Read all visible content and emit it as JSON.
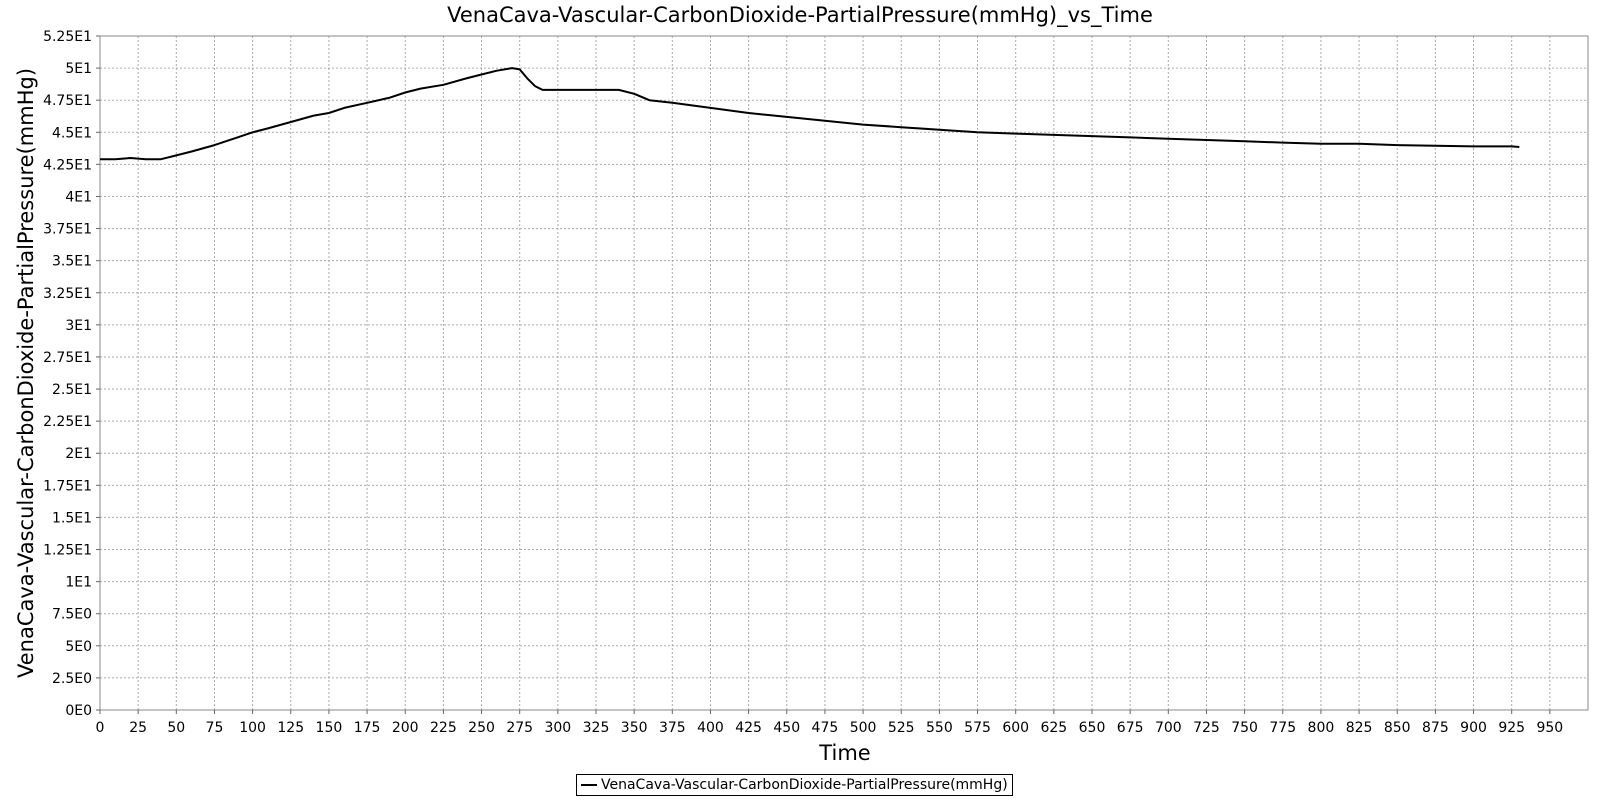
{
  "chart_data": {
    "type": "line",
    "title": "VenaCava-Vascular-CarbonDioxide-PartialPressure(mmHg)_vs_Time",
    "xlabel": "Time",
    "ylabel": "VenaCava-Vascular-CarbonDioxide-PartialPressure(mmHg)",
    "xlim": [
      0,
      975
    ],
    "ylim": [
      0,
      52.5
    ],
    "grid": true,
    "legend_position": "bottom",
    "x_ticks": [
      "0",
      "25",
      "50",
      "75",
      "100",
      "125",
      "150",
      "175",
      "200",
      "225",
      "250",
      "275",
      "300",
      "325",
      "350",
      "375",
      "400",
      "425",
      "450",
      "475",
      "500",
      "525",
      "550",
      "575",
      "600",
      "625",
      "650",
      "675",
      "700",
      "725",
      "750",
      "775",
      "800",
      "825",
      "850",
      "875",
      "900",
      "925",
      "950"
    ],
    "y_ticks": [
      "0E0",
      "2.5E0",
      "5E0",
      "7.5E0",
      "1E1",
      "1.25E1",
      "1.5E1",
      "1.75E1",
      "2E1",
      "2.25E1",
      "2.5E1",
      "2.75E1",
      "3E1",
      "3.25E1",
      "3.5E1",
      "3.75E1",
      "4E1",
      "4.25E1",
      "4.5E1",
      "4.75E1",
      "5E1",
      "5.25E1"
    ],
    "series": [
      {
        "name": "VenaCava-Vascular-CarbonDioxide-PartialPressure(mmHg)",
        "color": "#000000",
        "x": [
          0,
          10,
          20,
          30,
          40,
          50,
          60,
          75,
          90,
          100,
          110,
          125,
          140,
          150,
          160,
          175,
          190,
          200,
          210,
          225,
          240,
          250,
          260,
          270,
          275,
          280,
          285,
          290,
          295,
          300,
          325,
          340,
          350,
          360,
          375,
          400,
          425,
          450,
          475,
          500,
          525,
          550,
          575,
          600,
          625,
          650,
          675,
          700,
          725,
          750,
          775,
          800,
          825,
          850,
          875,
          900,
          925,
          930
        ],
        "y": [
          42.9,
          42.9,
          43.0,
          42.9,
          42.9,
          43.2,
          43.5,
          44.0,
          44.6,
          45.0,
          45.3,
          45.8,
          46.3,
          46.5,
          46.9,
          47.3,
          47.7,
          48.1,
          48.4,
          48.7,
          49.2,
          49.5,
          49.8,
          50.0,
          49.9,
          49.2,
          48.6,
          48.3,
          48.3,
          48.3,
          48.3,
          48.3,
          48.0,
          47.5,
          47.3,
          46.9,
          46.5,
          46.2,
          45.9,
          45.6,
          45.4,
          45.2,
          45.0,
          44.9,
          44.8,
          44.7,
          44.6,
          44.5,
          44.4,
          44.3,
          44.2,
          44.1,
          44.1,
          44.0,
          43.95,
          43.9,
          43.9,
          43.85
        ]
      }
    ]
  }
}
